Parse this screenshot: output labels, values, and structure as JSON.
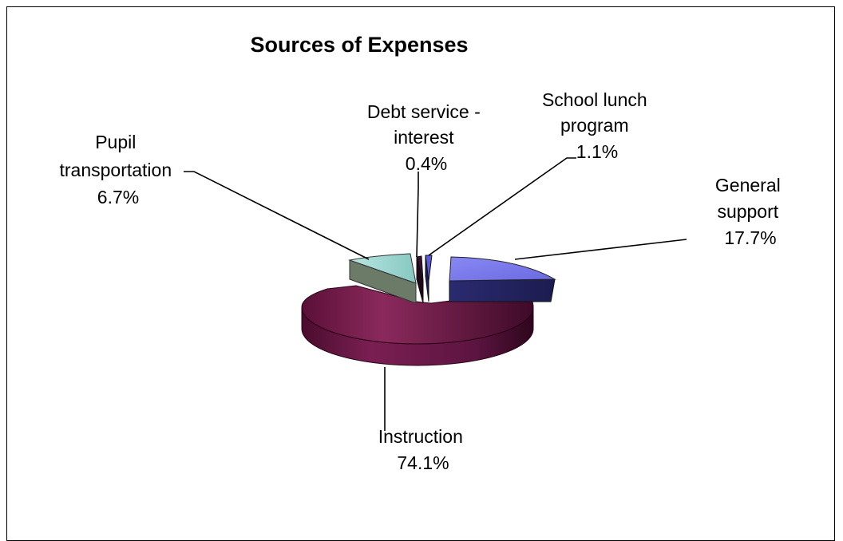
{
  "chart_data": {
    "type": "pie",
    "title": "Sources of Expenses",
    "slices": [
      {
        "name": "General support",
        "label_lines": [
          "General",
          "support",
          "17.7%"
        ],
        "value": 17.7,
        "color": "#7777ee"
      },
      {
        "name": "Instruction",
        "label_lines": [
          "Instruction",
          "74.1%"
        ],
        "value": 74.1,
        "color": "#7a1a4e"
      },
      {
        "name": "Pupil transportation",
        "label_lines": [
          "Pupil",
          "transportation",
          "6.7%"
        ],
        "value": 6.7,
        "color": "#aee0dc"
      },
      {
        "name": "Debt service - interest",
        "label_lines": [
          "Debt service -",
          "interest",
          "0.4%"
        ],
        "value": 0.4,
        "color": "#3a1030"
      },
      {
        "name": "School lunch program",
        "label_lines": [
          "School lunch",
          "program",
          "1.1%"
        ],
        "value": 1.1,
        "color": "#5050c8"
      }
    ],
    "exploded": true,
    "three_d": true
  }
}
